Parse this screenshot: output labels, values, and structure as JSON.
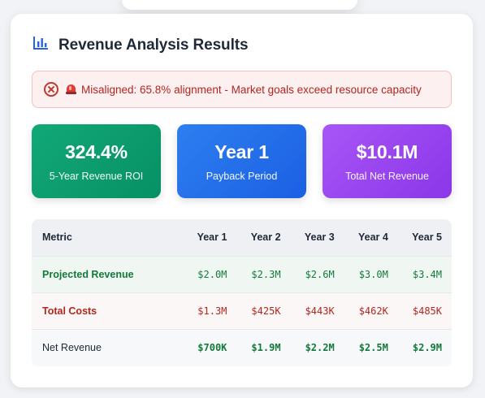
{
  "header": {
    "title": "Revenue Analysis Results",
    "icon": "bar-chart-icon"
  },
  "alert": {
    "text": "Misaligned: 65.8% alignment - Market goals exceed resource capacity",
    "icon": "close-circle-icon",
    "emoji": "siren-icon"
  },
  "stats": [
    {
      "value": "324.4%",
      "label": "5-Year Revenue ROI",
      "color": "#12a877"
    },
    {
      "value": "Year 1",
      "label": "Payback Period",
      "color": "#2d7ff0"
    },
    {
      "value": "$10.1M",
      "label": "Total Net Revenue",
      "color": "#a855f7"
    }
  ],
  "table": {
    "headers": [
      "Metric",
      "Year 1",
      "Year 2",
      "Year 3",
      "Year 4",
      "Year 5"
    ],
    "rows": [
      {
        "metric": "Projected Revenue",
        "values": [
          "$2.0M",
          "$2.3M",
          "$2.6M",
          "$3.0M",
          "$3.4M"
        ]
      },
      {
        "metric": "Total Costs",
        "values": [
          "$1.3M",
          "$425K",
          "$443K",
          "$462K",
          "$485K"
        ]
      },
      {
        "metric": "Net Revenue",
        "values": [
          "$700K",
          "$1.9M",
          "$2.2M",
          "$2.5M",
          "$2.9M"
        ]
      }
    ]
  }
}
